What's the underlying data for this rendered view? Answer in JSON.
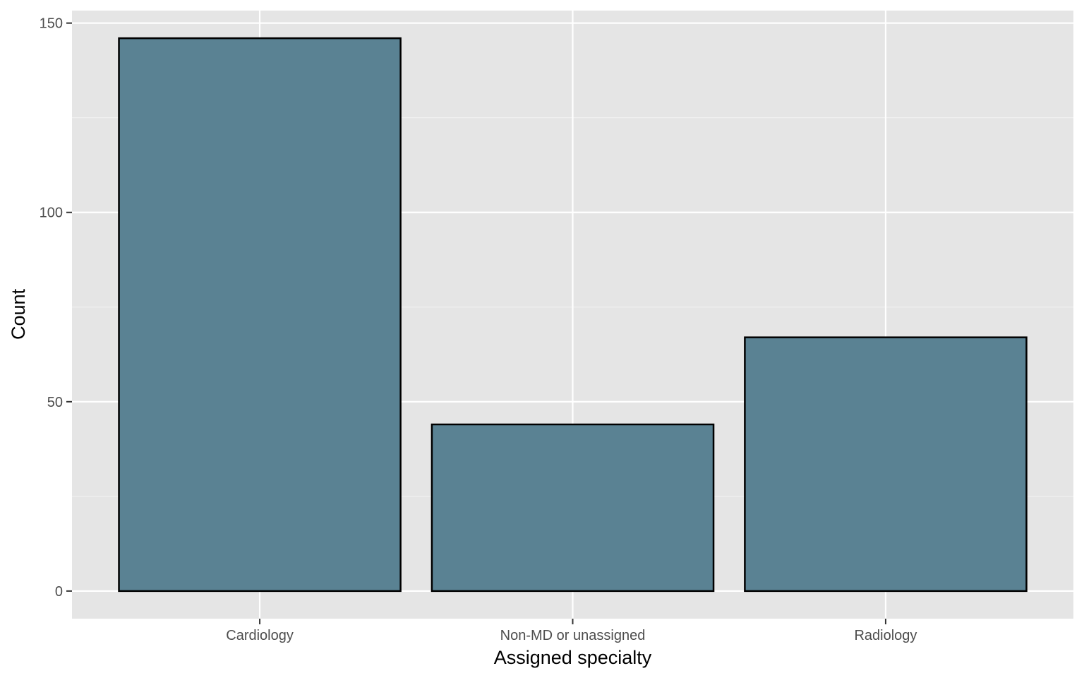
{
  "chart_data": {
    "type": "bar",
    "title": "",
    "xlabel": "Assigned specialty",
    "ylabel": "Count",
    "categories": [
      "Cardiology",
      "Non-MD or unassigned",
      "Radiology"
    ],
    "values": [
      146,
      44,
      67
    ],
    "ylim": [
      -7.3,
      153.3
    ],
    "yticks": [
      0,
      50,
      100,
      150
    ],
    "yticks_labels": [
      "0",
      "50",
      "100",
      "150"
    ],
    "grid": true,
    "legend": "none",
    "colors": {
      "bar_fill": "#557E8F",
      "bar_stroke": "#000000",
      "panel_background": "#E5E5E5",
      "grid_major": "#FFFFFF",
      "grid_minor": "#F2F2F2",
      "tick_color": "#333333"
    }
  }
}
